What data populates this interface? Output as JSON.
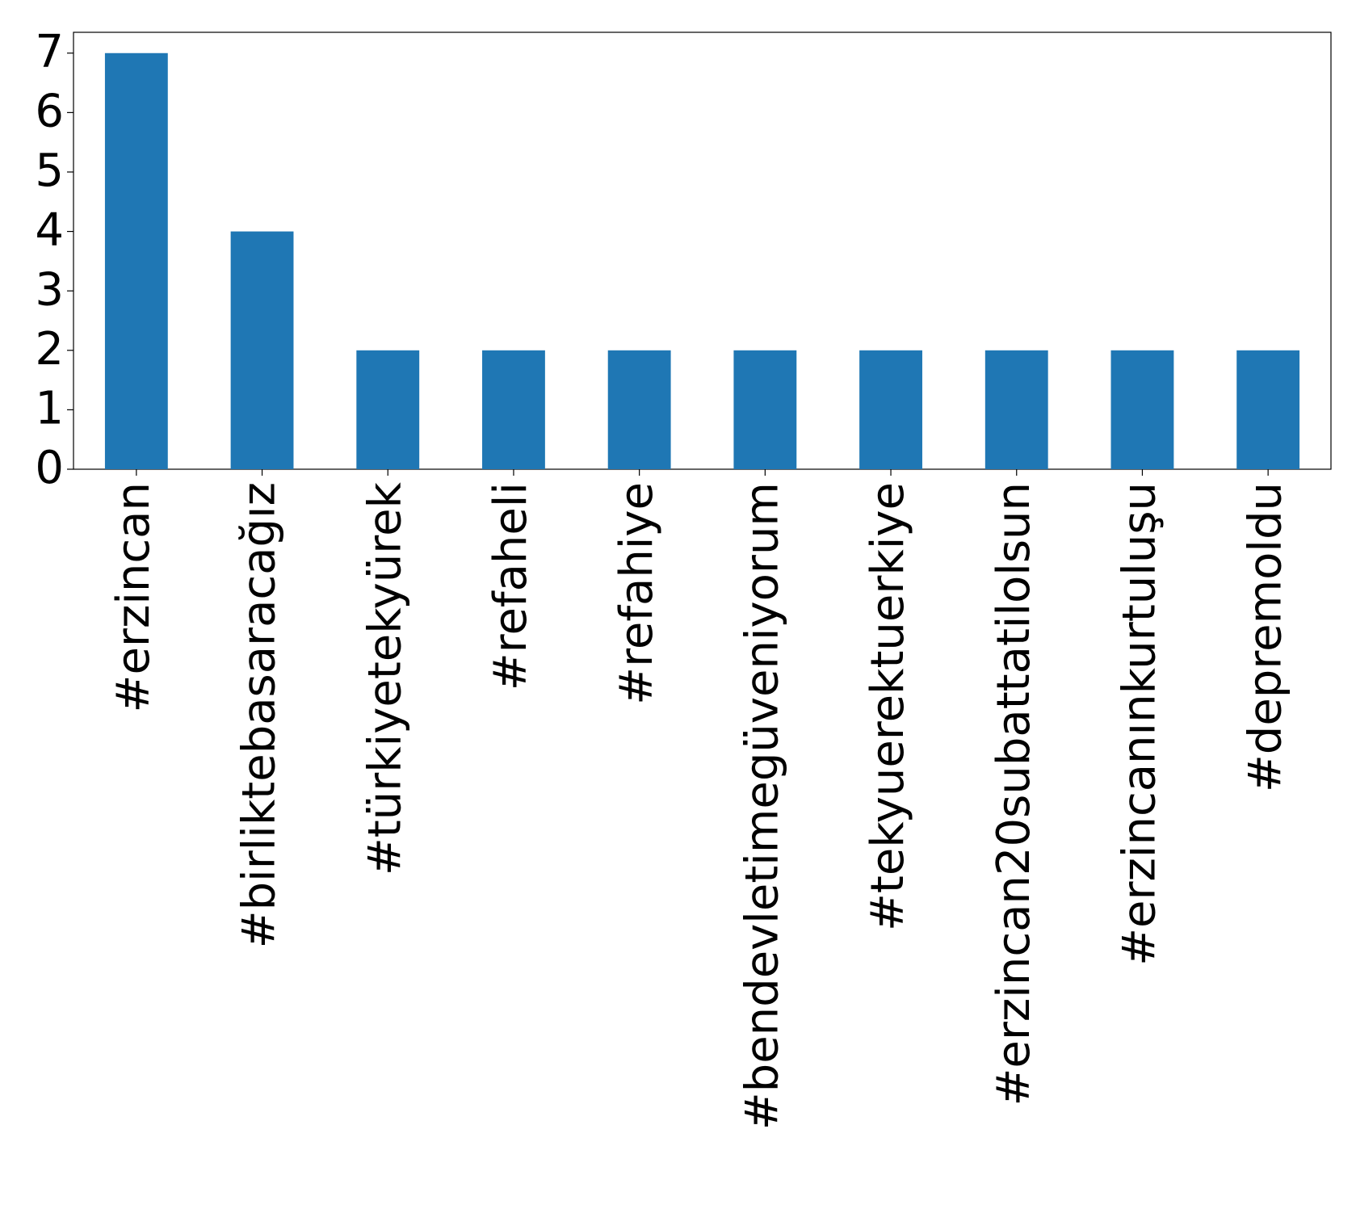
{
  "chart_data": {
    "type": "bar",
    "categories": [
      "#erzincan",
      "#birliktebasaracağız",
      "#türkiyetekyürek",
      "#refaheli",
      "#refahiye",
      "#bendevletimegüveniyorum",
      "#tekyuerektuerkiye",
      "#erzincan20subattatilolsun",
      "#erzincanınkurtuluşu",
      "#depremoldu"
    ],
    "values": [
      7,
      4,
      2,
      2,
      2,
      2,
      2,
      2,
      2,
      2
    ],
    "color": "#1f77b4",
    "ylim": [
      0,
      7.35
    ],
    "yticks": [
      0,
      1,
      2,
      3,
      4,
      5,
      6,
      7
    ],
    "grid": false
  }
}
